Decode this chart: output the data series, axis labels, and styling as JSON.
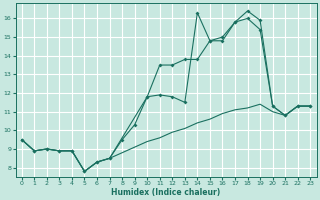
{
  "xlabel": "Humidex (Indice chaleur)",
  "bg_color": "#c8e8e0",
  "grid_color": "#ffffff",
  "line_color": "#1a7060",
  "xlim": [
    -0.5,
    23.5
  ],
  "ylim": [
    7.5,
    16.8
  ],
  "xticks": [
    0,
    1,
    2,
    3,
    4,
    5,
    6,
    7,
    8,
    9,
    10,
    11,
    12,
    13,
    14,
    15,
    16,
    17,
    18,
    19,
    20,
    21,
    22,
    23
  ],
  "yticks": [
    8,
    9,
    10,
    11,
    12,
    13,
    14,
    15,
    16
  ],
  "line_zigzag_x": [
    0,
    1,
    2,
    3,
    4,
    5,
    6,
    7,
    10,
    11,
    12,
    13,
    14,
    15,
    16,
    17,
    18,
    19,
    20,
    21,
    22,
    23
  ],
  "line_zigzag_y": [
    9.5,
    8.9,
    9.0,
    8.9,
    8.9,
    7.8,
    8.3,
    8.5,
    11.8,
    11.9,
    11.8,
    11.5,
    16.3,
    14.8,
    14.8,
    15.8,
    16.4,
    15.9,
    11.3,
    10.8,
    11.3,
    11.3
  ],
  "line_mid_x": [
    0,
    1,
    2,
    3,
    4,
    5,
    6,
    7,
    8,
    9,
    10,
    11,
    12,
    13,
    14,
    15,
    16,
    17,
    18,
    19,
    20,
    21,
    22,
    23
  ],
  "line_mid_y": [
    9.5,
    8.9,
    9.0,
    8.9,
    8.9,
    7.8,
    8.3,
    8.5,
    9.5,
    10.3,
    11.8,
    13.5,
    13.5,
    13.8,
    13.8,
    14.8,
    15.0,
    15.8,
    16.0,
    15.4,
    11.3,
    10.8,
    11.3,
    11.3
  ],
  "line_diag_x": [
    0,
    1,
    2,
    3,
    4,
    5,
    6,
    7,
    8,
    9,
    10,
    11,
    12,
    13,
    14,
    15,
    16,
    17,
    18,
    19,
    20,
    21,
    22,
    23
  ],
  "line_diag_y": [
    9.5,
    8.9,
    9.0,
    8.9,
    8.9,
    7.8,
    8.3,
    8.5,
    8.8,
    9.1,
    9.4,
    9.6,
    9.9,
    10.1,
    10.4,
    10.6,
    10.9,
    11.1,
    11.2,
    11.4,
    11.0,
    10.8,
    11.3,
    11.3
  ]
}
